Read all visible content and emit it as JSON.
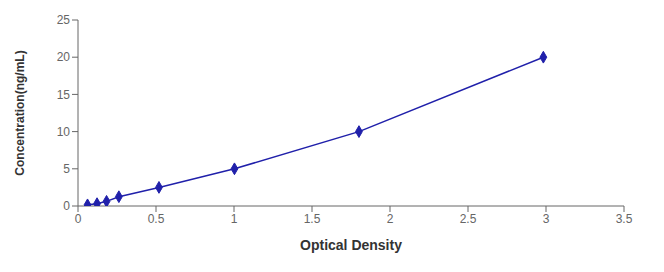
{
  "chart_data": {
    "type": "line",
    "x": [
      0.061,
      0.122,
      0.183,
      0.262,
      0.519,
      1.003,
      1.801,
      2.983
    ],
    "values": [
      0.156,
      0.313,
      0.625,
      1.25,
      2.5,
      5.0,
      10.0,
      20.0
    ],
    "color": "#2020aa",
    "marker": "diamond",
    "xlabel": "Optical Density",
    "ylabel": "Concentration(ng/mL)",
    "xlim": [
      0,
      3.5
    ],
    "ylim": [
      0,
      25
    ],
    "xticks": [
      0,
      0.5,
      1,
      1.5,
      2,
      2.5,
      3,
      3.5
    ],
    "yticks": [
      0,
      5,
      10,
      15,
      20,
      25
    ],
    "grid": false
  }
}
